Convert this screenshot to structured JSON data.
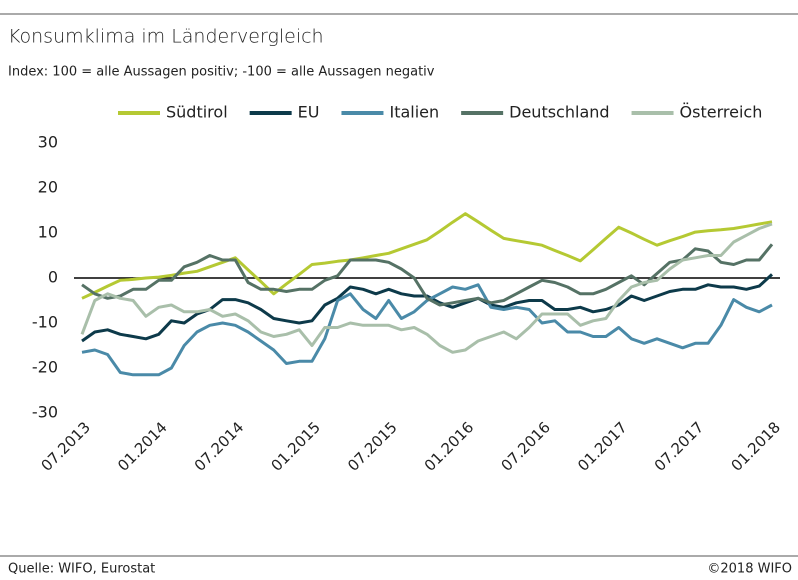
{
  "chart_data": {
    "type": "line",
    "title": "Konsumklima im Ländervergleich",
    "subtitle": "Index: 100 = alle Aussagen positiv; -100 =  alle Aussagen negativ",
    "source": "Quelle: WIFO, Eurostat",
    "copyright": "©2018 WIFO",
    "categories": [
      "07.2013",
      null,
      null,
      null,
      null,
      null,
      "01.2014",
      null,
      null,
      null,
      null,
      null,
      "07.2014",
      null,
      null,
      null,
      null,
      null,
      "01.2015",
      null,
      null,
      null,
      null,
      null,
      "07.2015",
      null,
      null,
      null,
      null,
      null,
      "01.2016",
      null,
      null,
      null,
      null,
      null,
      "07.2016",
      null,
      null,
      null,
      null,
      null,
      "01.2017",
      null,
      null,
      null,
      null,
      null,
      "07.2017",
      null,
      null,
      null,
      null,
      null,
      "01.2018"
    ],
    "ylim": [
      -30,
      30
    ],
    "yticks": [
      30,
      20,
      10,
      0,
      -10,
      -20,
      -30
    ],
    "zero_line": true,
    "legend": "top",
    "series": [
      {
        "name": "Südtirol",
        "color": "#b5c933",
        "values": [
          -4.5,
          -3.2,
          -1.8,
          -0.5,
          -0.3,
          0,
          0.2,
          0.6,
          1.1,
          1.5,
          2.5,
          3.5,
          4.5,
          1.8,
          -0.8,
          -3.5,
          -1.3,
          0.8,
          3,
          3.3,
          3.7,
          4,
          4.5,
          5,
          5.5,
          6.5,
          7.5,
          8.5,
          10.4,
          12.4,
          14.3,
          12.5,
          10.6,
          8.8,
          8.3,
          7.8,
          7.3,
          6.1,
          5,
          3.8,
          6.3,
          8.8,
          11.3,
          10,
          8.6,
          7.3,
          8.3,
          9.2,
          10.2,
          10.5,
          10.7,
          11,
          11.5,
          12,
          12.5
        ]
      },
      {
        "name": "EU",
        "color": "#0d3a4a",
        "values": [
          -14,
          -12,
          -11.5,
          -12.5,
          -13,
          -13.5,
          -12.5,
          -9.5,
          -10,
          -8,
          -7,
          -4.8,
          -4.8,
          -5.5,
          -7,
          -9,
          -9.5,
          -10,
          -9.5,
          -6,
          -4.5,
          -2,
          -2.5,
          -3.5,
          -2.5,
          -3.5,
          -4,
          -4,
          -5.5,
          -6.5,
          -5.5,
          -4.5,
          -6,
          -6.5,
          -5.5,
          -5,
          -5,
          -7,
          -7,
          -6.5,
          -7.5,
          -7,
          -6,
          -4,
          -5,
          -4,
          -3,
          -2.5,
          -2.5,
          -1.5,
          -2,
          -2,
          -2.5,
          -1.8,
          0.8
        ]
      },
      {
        "name": "Italien",
        "color": "#4a8aa8",
        "values": [
          -16.5,
          -16,
          -17,
          -21,
          -21.5,
          -21.5,
          -21.5,
          -20,
          -15,
          -12,
          -10.5,
          -10,
          -10.5,
          -12,
          -14,
          -16,
          -19,
          -18.5,
          -18.5,
          -13.5,
          -5,
          -3.5,
          -7,
          -9,
          -5,
          -9,
          -7.5,
          -5,
          -3.5,
          -2,
          -2.5,
          -1.5,
          -6.5,
          -7,
          -6.5,
          -7,
          -10,
          -9.5,
          -12,
          -12,
          -13,
          -13,
          -11,
          -13.5,
          -14.5,
          -13.5,
          -14.5,
          -15.5,
          -14.5,
          -14.5,
          -10.5,
          -4.8,
          -6.5,
          -7.5,
          -6
        ]
      },
      {
        "name": "Deutschland",
        "color": "#557265",
        "values": [
          -1.5,
          -3.5,
          -4.5,
          -4,
          -2.5,
          -2.5,
          -0.5,
          -0.5,
          2.5,
          3.5,
          5,
          4,
          4,
          -1,
          -2.5,
          -2.5,
          -3,
          -2.5,
          -2.5,
          -0.5,
          0.5,
          4,
          4,
          4,
          3.5,
          2,
          0,
          -4.5,
          -6,
          -5.5,
          -5,
          -4.5,
          -5.5,
          -5,
          -3.5,
          -2,
          -0.5,
          -1,
          -2,
          -3.5,
          -3.5,
          -2.5,
          -1,
          0.5,
          -1.5,
          1,
          3.5,
          4,
          6.5,
          6,
          3.5,
          3,
          4,
          4,
          7.5
        ]
      },
      {
        "name": "Österreich",
        "color": "#a9bfaa",
        "values": [
          -12.5,
          -5,
          -3.5,
          -4.5,
          -5,
          -8.5,
          -6.5,
          -6,
          -7.5,
          -7.5,
          -7,
          -8.5,
          -8,
          -9.5,
          -12,
          -13,
          -12.5,
          -11.5,
          -15,
          -11,
          -11,
          -10,
          -10.5,
          -10.5,
          -10.5,
          -11.5,
          -11,
          -12.5,
          -15,
          -16.5,
          -16,
          -14,
          -13,
          -12,
          -13.5,
          -11,
          -8,
          -8,
          -8,
          -10.5,
          -9.5,
          -9,
          -5,
          -2,
          -1,
          -0.5,
          2,
          4,
          4.5,
          5,
          5,
          8,
          9.5,
          11,
          12
        ]
      }
    ]
  }
}
